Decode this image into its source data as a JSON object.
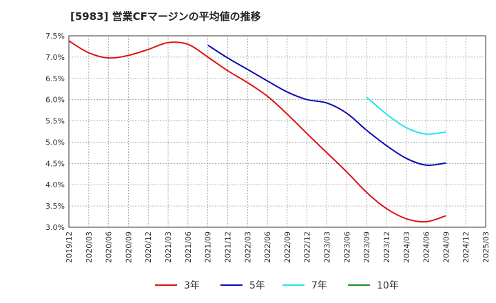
{
  "title": "[5983]  営業CFマージンの平均値の推移",
  "chart_data": {
    "type": "line",
    "title": "[5983]  営業CFマージンの平均値の推移",
    "xlabel": "",
    "ylabel": "",
    "x_ticks": [
      "2019/12",
      "2020/03",
      "2020/06",
      "2020/09",
      "2020/12",
      "2021/03",
      "2021/06",
      "2021/09",
      "2021/12",
      "2022/03",
      "2022/06",
      "2022/09",
      "2022/12",
      "2023/03",
      "2023/06",
      "2023/09",
      "2023/12",
      "2024/03",
      "2024/06",
      "2024/09",
      "2024/12",
      "2025/03"
    ],
    "y_ticks": [
      "3.0%",
      "3.5%",
      "4.0%",
      "4.5%",
      "5.0%",
      "5.5%",
      "6.0%",
      "6.5%",
      "7.0%",
      "7.5%"
    ],
    "ylim": [
      3.0,
      7.5
    ],
    "grid": true,
    "legend_position": "bottom",
    "series": [
      {
        "name": "3年",
        "color": "#dd1111",
        "x": [
          "2019/12",
          "2020/03",
          "2020/06",
          "2020/09",
          "2020/12",
          "2021/03",
          "2021/06",
          "2021/09",
          "2021/12",
          "2022/03",
          "2022/06",
          "2022/09",
          "2022/12",
          "2023/03",
          "2023/06",
          "2023/09",
          "2023/12",
          "2024/03",
          "2024/06",
          "2024/09"
        ],
        "values": [
          7.38,
          7.1,
          6.98,
          7.04,
          7.18,
          7.34,
          7.3,
          7.0,
          6.68,
          6.4,
          6.08,
          5.66,
          5.2,
          4.75,
          4.3,
          3.82,
          3.44,
          3.2,
          3.13,
          3.27
        ]
      },
      {
        "name": "5年",
        "color": "#0a0ab4",
        "x": [
          "2021/09",
          "2021/12",
          "2022/03",
          "2022/06",
          "2022/09",
          "2022/12",
          "2023/03",
          "2023/06",
          "2023/09",
          "2023/12",
          "2024/03",
          "2024/06",
          "2024/09"
        ],
        "values": [
          7.28,
          6.98,
          6.71,
          6.44,
          6.18,
          6.0,
          5.92,
          5.68,
          5.28,
          4.92,
          4.62,
          4.46,
          4.51
        ]
      },
      {
        "name": "7年",
        "color": "#22e5f0",
        "x": [
          "2023/09",
          "2023/12",
          "2024/03",
          "2024/06",
          "2024/09"
        ],
        "values": [
          6.06,
          5.66,
          5.34,
          5.19,
          5.24
        ]
      },
      {
        "name": "10年",
        "color": "#228b22",
        "x": [],
        "values": []
      }
    ]
  }
}
